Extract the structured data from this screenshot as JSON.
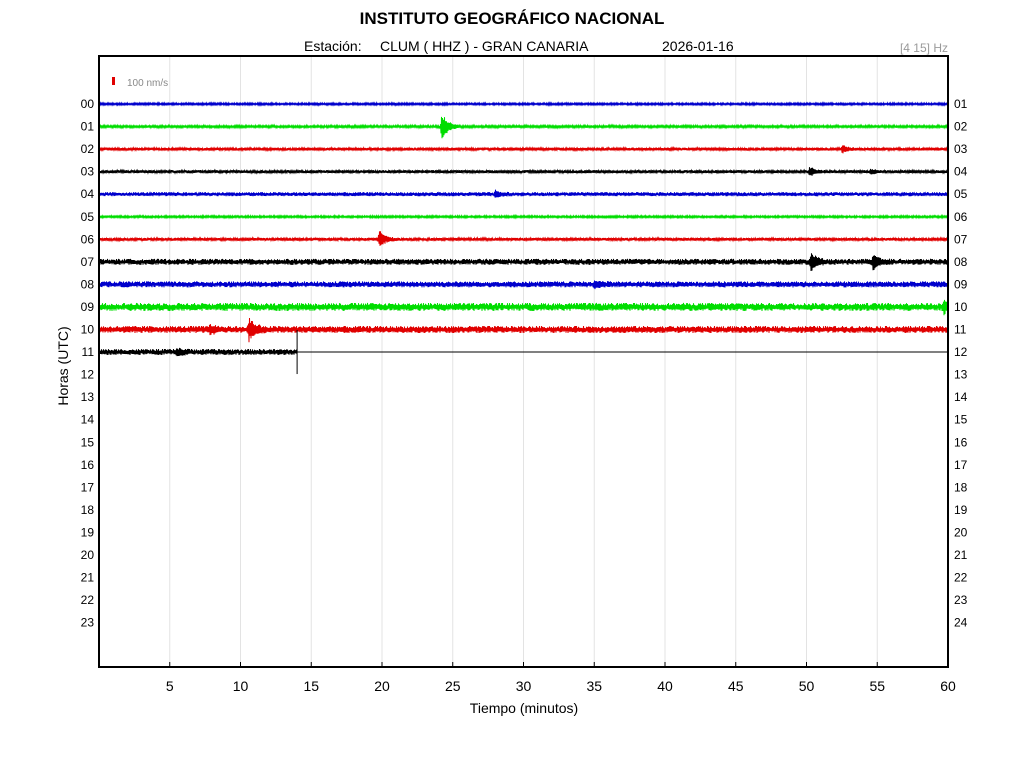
{
  "header": {
    "title": "INSTITUTO GEOGRÁFICO NACIONAL",
    "station_label": "Estación:",
    "station": "CLUM ( HHZ ) - GRAN CANARIA",
    "date": "2026-01-16",
    "filter_band": "[4 15] Hz"
  },
  "chart_data": {
    "type": "line",
    "title": "INSTITUTO GEOGRÁFICO NACIONAL",
    "xlabel": "Tiempo (minutos)",
    "ylabel": "Horas (UTC)",
    "xlim": [
      0,
      60
    ],
    "x_ticks": [
      5,
      10,
      15,
      20,
      25,
      30,
      35,
      40,
      45,
      50,
      55,
      60
    ],
    "left_ticks": [
      "00",
      "01",
      "02",
      "03",
      "04",
      "05",
      "06",
      "07",
      "08",
      "09",
      "10",
      "11",
      "12",
      "13",
      "14",
      "15",
      "16",
      "17",
      "18",
      "19",
      "20",
      "21",
      "22",
      "23"
    ],
    "right_ticks": [
      "01",
      "02",
      "03",
      "04",
      "05",
      "06",
      "07",
      "08",
      "09",
      "10",
      "11",
      "12",
      "13",
      "14",
      "15",
      "16",
      "17",
      "18",
      "19",
      "20",
      "21",
      "22",
      "23",
      "24"
    ],
    "grid": "vertical",
    "scale_label": "100 nm/s",
    "scale_color": "#e00000",
    "last_sample_minute": 14,
    "colors": [
      "#0000cc",
      "#00dd00",
      "#e00000",
      "#000000"
    ],
    "series": [
      {
        "hour": "00",
        "color": "#0000cc",
        "noise": 1.0,
        "events": []
      },
      {
        "hour": "01",
        "color": "#00dd00",
        "noise": 1.2,
        "events": [
          {
            "t": 24.2,
            "amp": 16
          }
        ]
      },
      {
        "hour": "02",
        "color": "#e00000",
        "noise": 1.5,
        "events": [
          {
            "t": 52.5,
            "amp": 4
          }
        ]
      },
      {
        "hour": "03",
        "color": "#000000",
        "noise": 1.5,
        "events": [
          {
            "t": 50.2,
            "amp": 5
          },
          {
            "t": 54.5,
            "amp": 3
          }
        ]
      },
      {
        "hour": "04",
        "color": "#0000cc",
        "noise": 2.0,
        "events": [
          {
            "t": 28.0,
            "amp": 3
          }
        ]
      },
      {
        "hour": "05",
        "color": "#00dd00",
        "noise": 1.0,
        "events": []
      },
      {
        "hour": "06",
        "color": "#e00000",
        "noise": 1.5,
        "events": [
          {
            "t": 19.8,
            "amp": 10
          }
        ]
      },
      {
        "hour": "07",
        "color": "#000000",
        "noise": 3.0,
        "events": [
          {
            "t": 50.3,
            "amp": 9
          },
          {
            "t": 54.7,
            "amp": 8
          }
        ]
      },
      {
        "hour": "08",
        "color": "#0000cc",
        "noise": 3.0,
        "events": [
          {
            "t": 35.0,
            "amp": 3
          }
        ]
      },
      {
        "hour": "09",
        "color": "#00dd00",
        "noise": 4.0,
        "events": [
          {
            "t": 59.7,
            "amp": 6
          }
        ]
      },
      {
        "hour": "10",
        "color": "#e00000",
        "noise": 3.5,
        "events": [
          {
            "t": 7.8,
            "amp": 4
          },
          {
            "t": 10.6,
            "amp": 11
          }
        ]
      },
      {
        "hour": "11",
        "color": "#000000",
        "noise": 3.0,
        "events": [
          {
            "t": 5.5,
            "amp": 3
          }
        ],
        "end_minute": 14
      }
    ]
  }
}
